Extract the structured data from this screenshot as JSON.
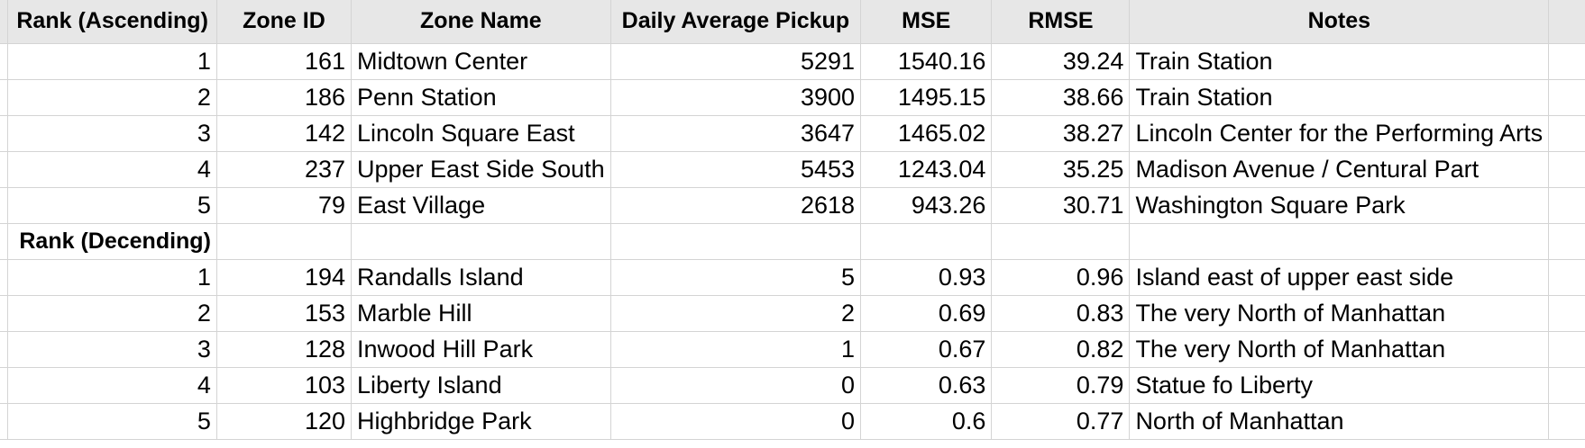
{
  "headers": {
    "rank_asc": "Rank (Ascending)",
    "zone_id": "Zone ID",
    "zone_name": "Zone Name",
    "daily_avg": "Daily Average Pickup",
    "mse": "MSE",
    "rmse": "RMSE",
    "notes": "Notes"
  },
  "ascending": [
    {
      "rank": "1",
      "zone_id": "161",
      "zone_name": "Midtown Center",
      "daily_avg": "5291",
      "mse": "1540.16",
      "rmse": "39.24",
      "notes": "Train Station"
    },
    {
      "rank": "2",
      "zone_id": "186",
      "zone_name": "Penn Station",
      "daily_avg": "3900",
      "mse": "1495.15",
      "rmse": "38.66",
      "notes": "Train Station"
    },
    {
      "rank": "3",
      "zone_id": "142",
      "zone_name": "Lincoln Square East",
      "daily_avg": "3647",
      "mse": "1465.02",
      "rmse": "38.27",
      "notes": "Lincoln Center for the Performing Arts"
    },
    {
      "rank": "4",
      "zone_id": "237",
      "zone_name": "Upper East Side South",
      "daily_avg": "5453",
      "mse": "1243.04",
      "rmse": "35.25",
      "notes": "Madison Avenue / Centural Part"
    },
    {
      "rank": "5",
      "zone_id": "79",
      "zone_name": "East Village",
      "daily_avg": "2618",
      "mse": "943.26",
      "rmse": "30.71",
      "notes": "Washington Square Park"
    }
  ],
  "section_label_desc": "Rank (Decending)",
  "descending": [
    {
      "rank": "1",
      "zone_id": "194",
      "zone_name": "Randalls Island",
      "daily_avg": "5",
      "mse": "0.93",
      "rmse": "0.96",
      "notes": "Island east of upper east side"
    },
    {
      "rank": "2",
      "zone_id": "153",
      "zone_name": "Marble Hill",
      "daily_avg": "2",
      "mse": "0.69",
      "rmse": "0.83",
      "notes": "The very North of Manhattan"
    },
    {
      "rank": "3",
      "zone_id": "128",
      "zone_name": "Inwood Hill Park",
      "daily_avg": "1",
      "mse": "0.67",
      "rmse": "0.82",
      "notes": "The very North of Manhattan"
    },
    {
      "rank": "4",
      "zone_id": "103",
      "zone_name": "Liberty Island",
      "daily_avg": "0",
      "mse": "0.63",
      "rmse": "0.79",
      "notes": "Statue fo Liberty"
    },
    {
      "rank": "5",
      "zone_id": "120",
      "zone_name": "Highbridge Park",
      "daily_avg": "0",
      "mse": "0.6",
      "rmse": "0.77",
      "notes": "North of Manhattan"
    }
  ]
}
